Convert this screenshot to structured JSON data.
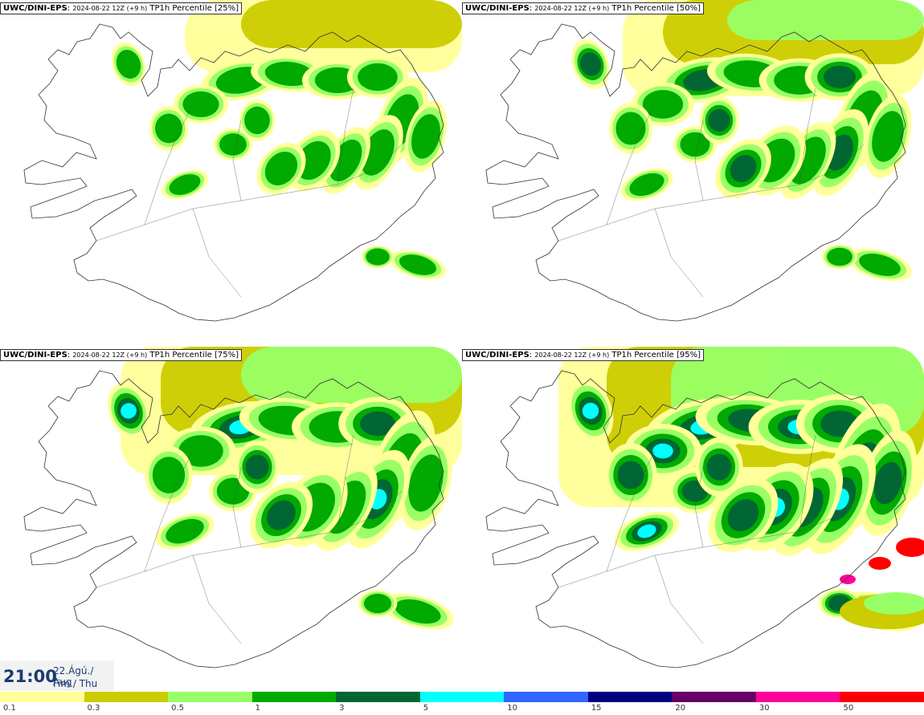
{
  "panels": [
    {
      "model": "UWC/DINI-EPS",
      "run": "2024-08-22 12Z (+9 h)",
      "field": "TP1h Percentile [25%]",
      "level": 0
    },
    {
      "model": "UWC/DINI-EPS",
      "run": "2024-08-22 12Z (+9 h)",
      "field": "TP1h Percentile [50%]",
      "level": 1
    },
    {
      "model": "UWC/DINI-EPS",
      "run": "2024-08-22 12Z (+9 h)",
      "field": "TP1h Percentile [75%]",
      "level": 2
    },
    {
      "model": "UWC/DINI-EPS",
      "run": "2024-08-22 12Z (+9 h)",
      "field": "TP1h Percentile [95%]",
      "level": 3
    }
  ],
  "valid_time": {
    "time": "21:00",
    "date": "22.Ágú./ Aug",
    "day": "Fim./ Thu"
  },
  "legend": {
    "colors": [
      "#ffff99",
      "#cccc00",
      "#99ff66",
      "#00aa00",
      "#006633",
      "#00ffff",
      "#3366ff",
      "#000080",
      "#660066",
      "#ff0099",
      "#ff0000"
    ],
    "labels": [
      "0.1",
      "0.3",
      "0.5",
      "1",
      "3",
      "5",
      "10",
      "15",
      "20",
      "30",
      "50"
    ]
  }
}
